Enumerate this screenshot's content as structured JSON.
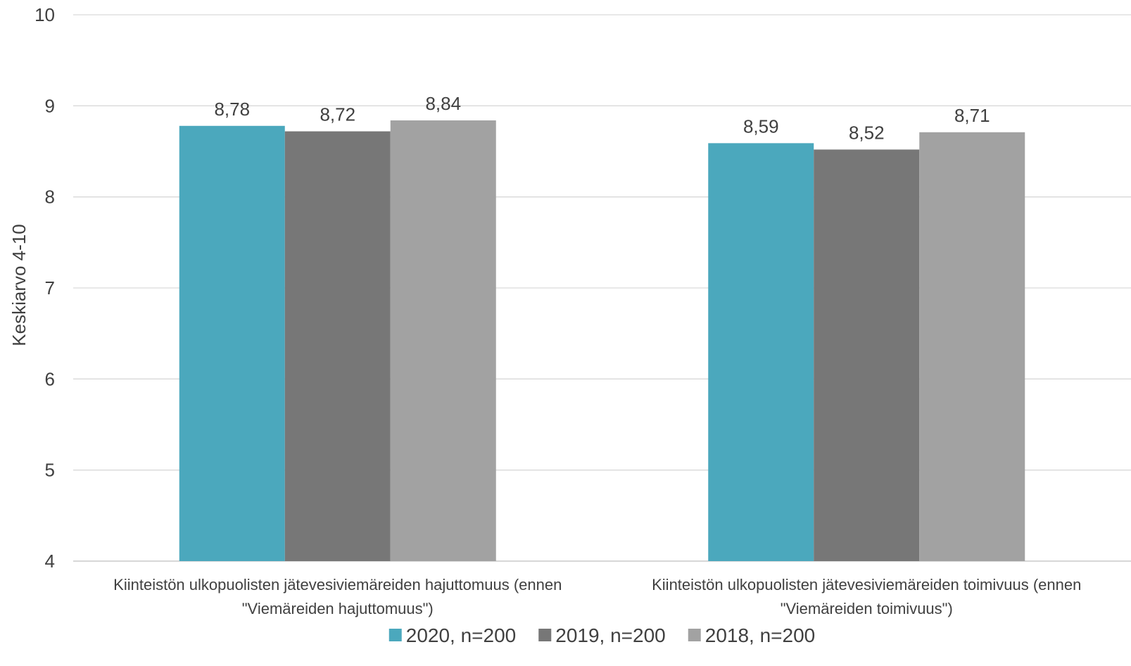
{
  "chart_data": {
    "type": "bar",
    "title": "",
    "xlabel": "",
    "ylabel": "Keskiarvo 4-10",
    "ylim": [
      4,
      10
    ],
    "yticks": [
      4,
      5,
      6,
      7,
      8,
      9,
      10
    ],
    "grid": true,
    "legend_position": "bottom",
    "categories": [
      [
        "Kiinteistön ulkopuolisten jätevesiviemäreiden hajuttomuus (ennen",
        "\"Viemäreiden hajuttomuus\")"
      ],
      [
        "Kiinteistön ulkopuolisten jätevesiviemäreiden toimivuus (ennen",
        "\"Viemäreiden toimivuus\")"
      ]
    ],
    "series": [
      {
        "name": "2020, n=200",
        "color": "#4BA8BD",
        "values": [
          8.78,
          8.59
        ],
        "labels": [
          "8,78",
          "8,59"
        ]
      },
      {
        "name": "2019, n=200",
        "color": "#777777",
        "values": [
          8.72,
          8.52
        ],
        "labels": [
          "8,72",
          "8,52"
        ]
      },
      {
        "name": "2018, n=200",
        "color": "#A2A2A2",
        "values": [
          8.84,
          8.71
        ],
        "labels": [
          "8,84",
          "8,71"
        ]
      }
    ]
  }
}
